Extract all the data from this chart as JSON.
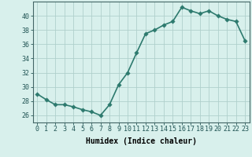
{
  "x": [
    0,
    1,
    2,
    3,
    4,
    5,
    6,
    7,
    8,
    9,
    10,
    11,
    12,
    13,
    14,
    15,
    16,
    17,
    18,
    19,
    20,
    21,
    22,
    23
  ],
  "y": [
    29,
    28.2,
    27.5,
    27.5,
    27.2,
    26.8,
    26.5,
    26.0,
    27.5,
    30.3,
    32.0,
    34.8,
    37.5,
    38.0,
    38.7,
    39.2,
    41.2,
    40.7,
    40.3,
    40.7,
    40.0,
    39.5,
    39.2,
    36.5
  ],
  "line_color": "#2d7a6e",
  "marker_color": "#2d7a6e",
  "bg_color": "#d8f0ec",
  "grid_color": "#b0d0cc",
  "xlabel": "Humidex (Indice chaleur)",
  "ylim": [
    25,
    42
  ],
  "xlim": [
    -0.5,
    23.5
  ],
  "yticks": [
    26,
    28,
    30,
    32,
    34,
    36,
    38,
    40
  ],
  "xticks": [
    0,
    1,
    2,
    3,
    4,
    5,
    6,
    7,
    8,
    9,
    10,
    11,
    12,
    13,
    14,
    15,
    16,
    17,
    18,
    19,
    20,
    21,
    22,
    23
  ],
  "xlabel_fontsize": 7,
  "tick_fontsize": 6,
  "linewidth": 1.2,
  "markersize": 2.8
}
